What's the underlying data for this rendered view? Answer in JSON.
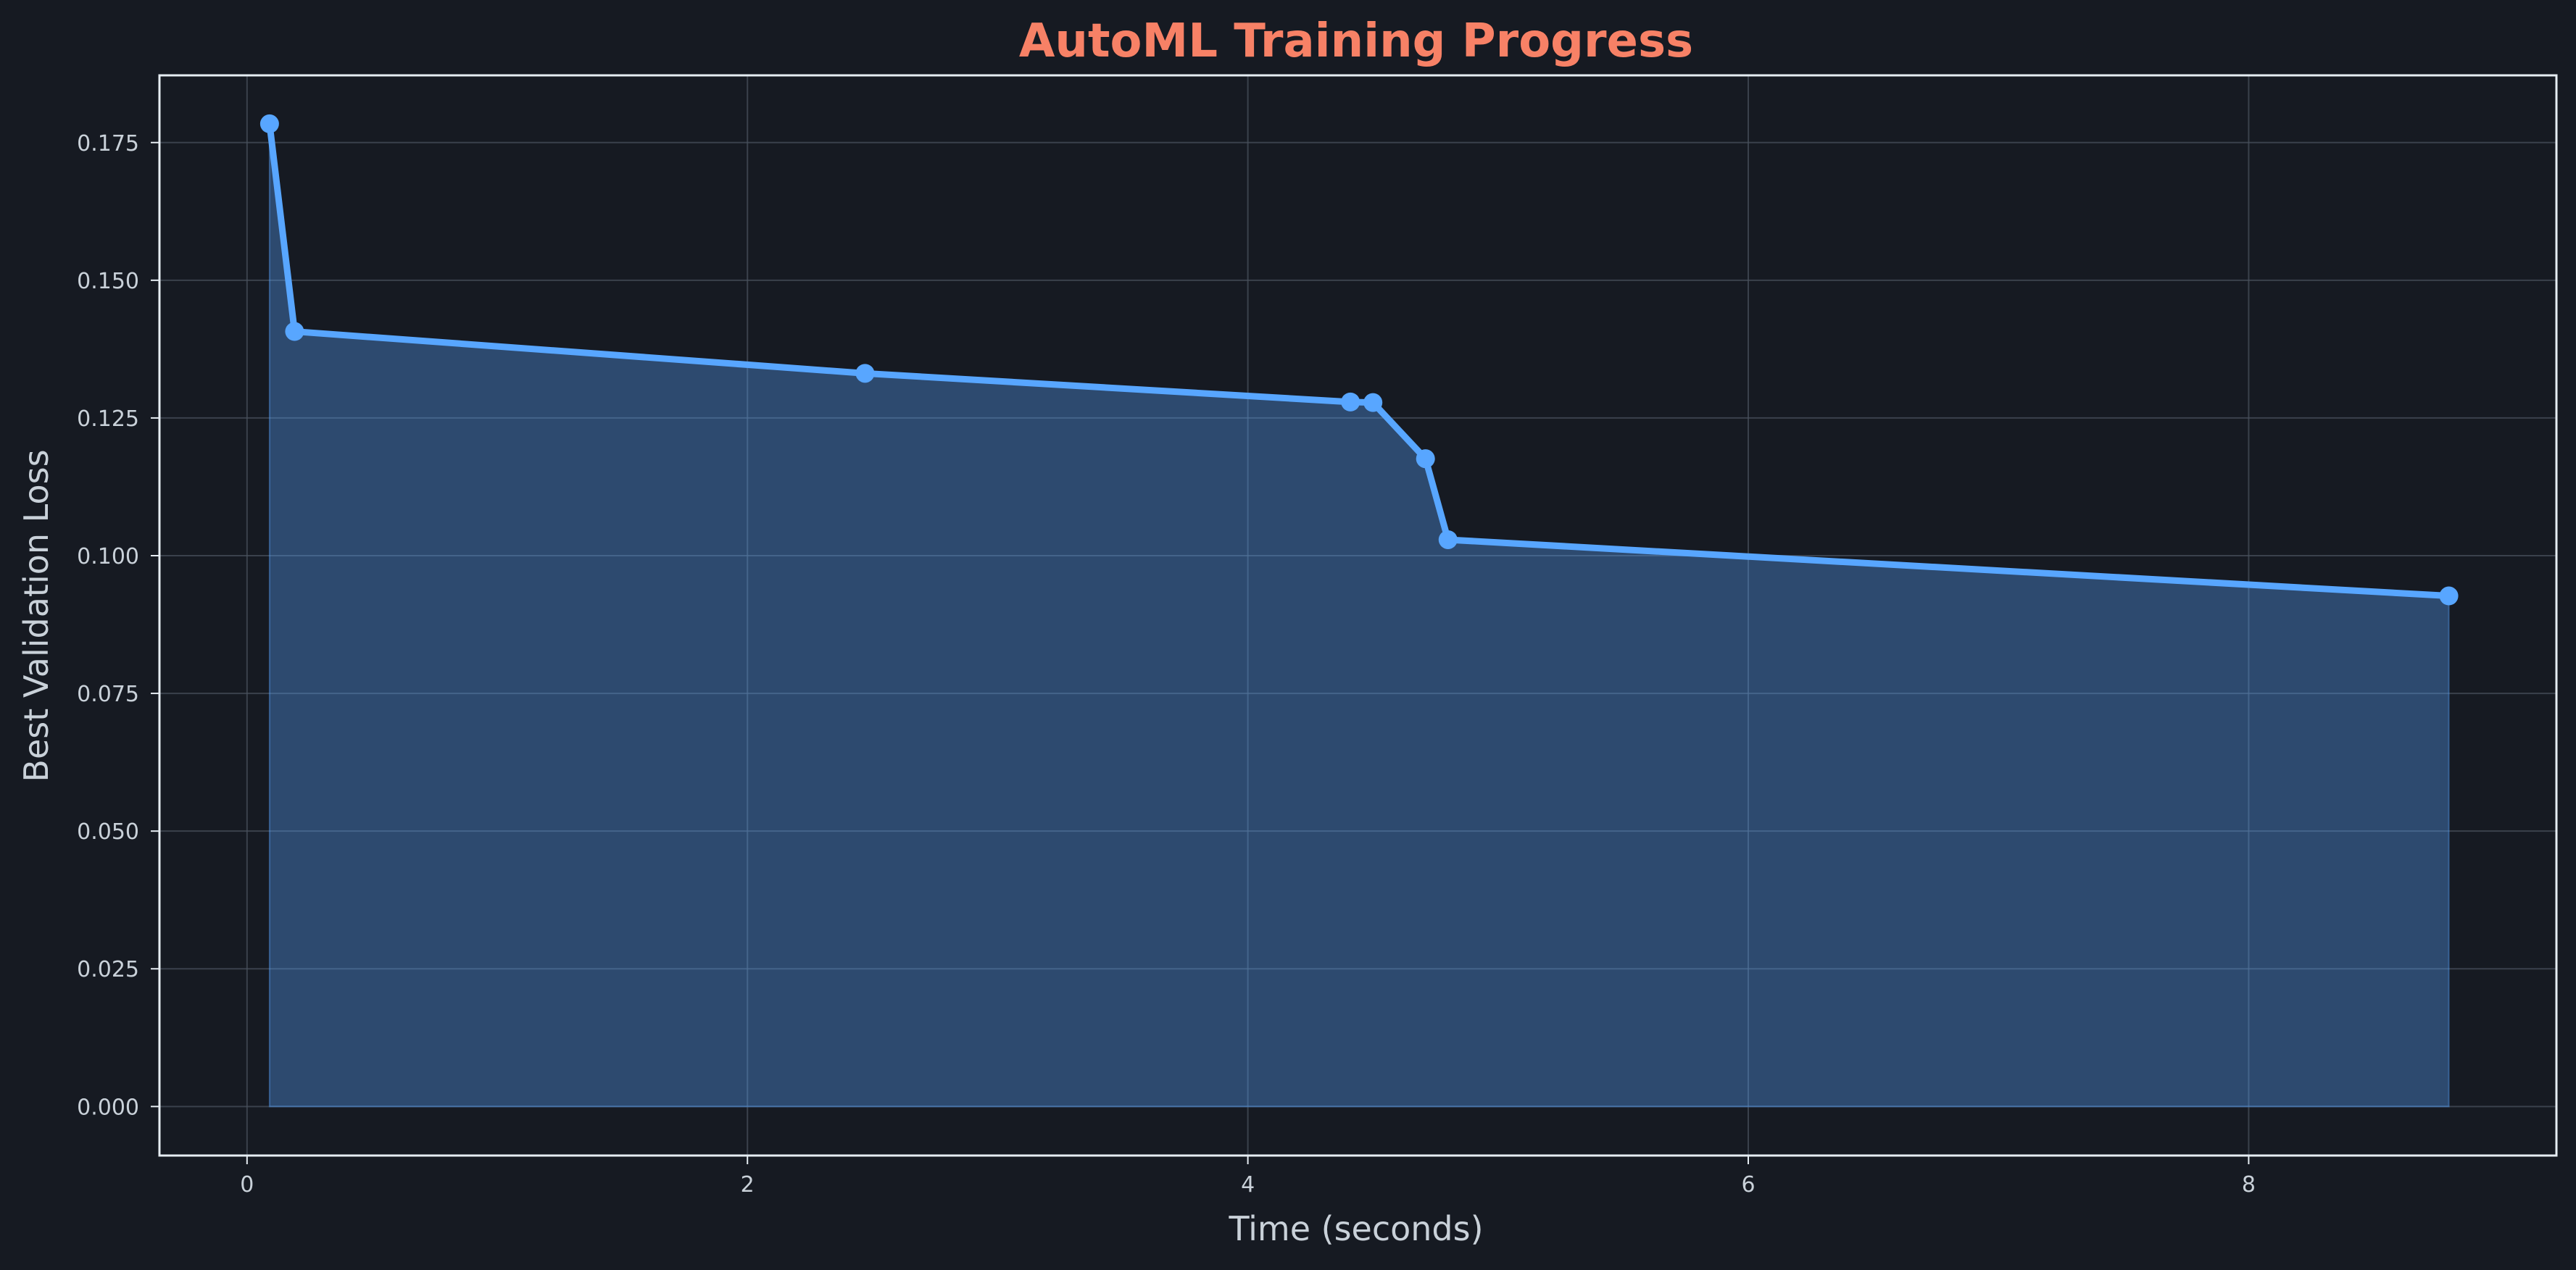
{
  "chart_data": {
    "type": "area",
    "title": "AutoML Training Progress",
    "xlabel": "Time (seconds)",
    "ylabel": "Best Validation Loss",
    "xlim": [
      -0.35,
      9.23
    ],
    "ylim": [
      -0.0089,
      0.1872
    ],
    "xticks": [
      0,
      2,
      4,
      6,
      8
    ],
    "xtick_labels": [
      "0",
      "2",
      "4",
      "6",
      "8"
    ],
    "yticks": [
      0.0,
      0.025,
      0.05,
      0.075,
      0.1,
      0.125,
      0.15,
      0.175
    ],
    "ytick_labels": [
      "0.000",
      "0.025",
      "0.050",
      "0.075",
      "0.100",
      "0.125",
      "0.150",
      "0.175"
    ],
    "grid": true,
    "series": [
      {
        "x": [
          0.09,
          0.19,
          2.47,
          4.41,
          4.5,
          4.71,
          4.8,
          8.8
        ],
        "y": [
          0.1784,
          0.1407,
          0.1331,
          0.1279,
          0.1278,
          0.1176,
          0.1029,
          0.0927
        ]
      }
    ],
    "colors": {
      "background": "#161a22",
      "line": "#58a6ff",
      "fill": "#2a4566",
      "title": "#f78166",
      "text": "#c9d1d9",
      "grid": "#4a525e",
      "frame": "#e6edf3"
    }
  }
}
